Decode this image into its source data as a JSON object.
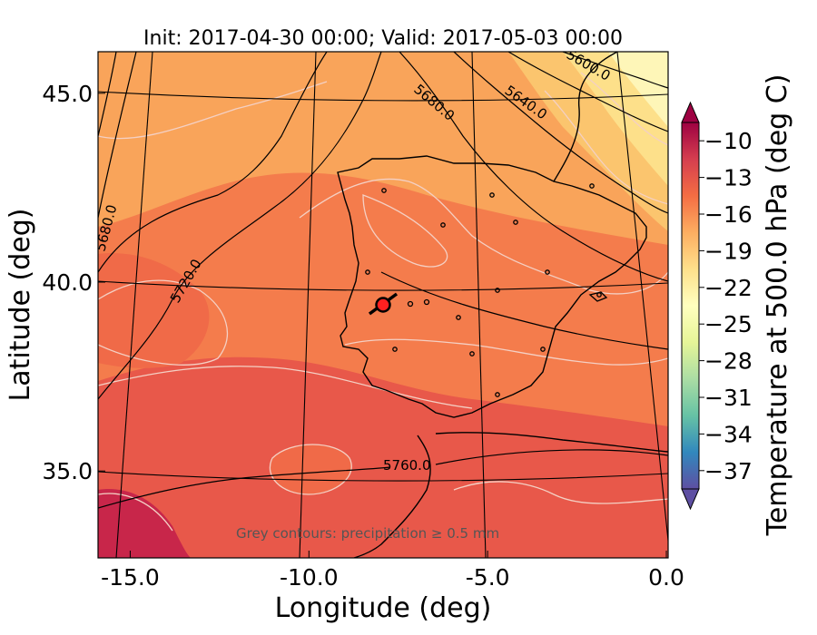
{
  "title": "Init: 2017-04-30 00:00; Valid: 2017-05-03 00:00",
  "xlabel": "Longitude (deg)",
  "ylabel": "Latitude (deg)",
  "xlim": [
    -15.9,
    0.05
  ],
  "ylim": [
    32.7,
    46.1
  ],
  "x_ticks": [
    {
      "value": -15.0,
      "label": "-15.0"
    },
    {
      "value": -10.0,
      "label": "-10.0"
    },
    {
      "value": -5.0,
      "label": "-5.0"
    },
    {
      "value": 0.0,
      "label": "0.0"
    }
  ],
  "y_ticks": [
    {
      "value": 35.0,
      "label": "35.0"
    },
    {
      "value": 40.0,
      "label": "40.0"
    },
    {
      "value": 45.0,
      "label": "45.0"
    }
  ],
  "colorbar": {
    "label": "Temperature at 500.0 hPa (deg C)",
    "range": [
      -38.5,
      -8.5
    ],
    "tick_values": [
      -10,
      -13,
      -16,
      -19,
      -22,
      -25,
      -28,
      -31,
      -34,
      -37
    ],
    "tick_labels": [
      "−10",
      "−13",
      "−16",
      "−19",
      "−22",
      "−25",
      "−28",
      "−31",
      "−34",
      "−37"
    ],
    "stops": [
      "#9e0142",
      "#d53e4f",
      "#f46d43",
      "#fdae61",
      "#fee08b",
      "#ffffbf",
      "#e6f598",
      "#abdda4",
      "#66c2a5",
      "#3288bd",
      "#5e4fa2"
    ]
  },
  "contour_labels": [
    {
      "text": "5680.0"
    },
    {
      "text": "5640.0"
    },
    {
      "text": "5600.0"
    },
    {
      "text": "5680.0"
    },
    {
      "text": "5720.0"
    },
    {
      "text": "5760.0"
    }
  ],
  "annotation": "Grey contours: precipitation ≥ 0.5 mm",
  "marker": {
    "lon": -7.7,
    "lat": 39.4,
    "color": "#ff2020"
  },
  "colors": {
    "hot": "#c8264a",
    "warm": "#e8584a",
    "mid": "#f47c4c",
    "cool": "#f9a45a",
    "cold": "#fde08a",
    "coldest": "#fef6b8",
    "precip_contour": "#f4d0c4",
    "height_contour": "#000000"
  }
}
